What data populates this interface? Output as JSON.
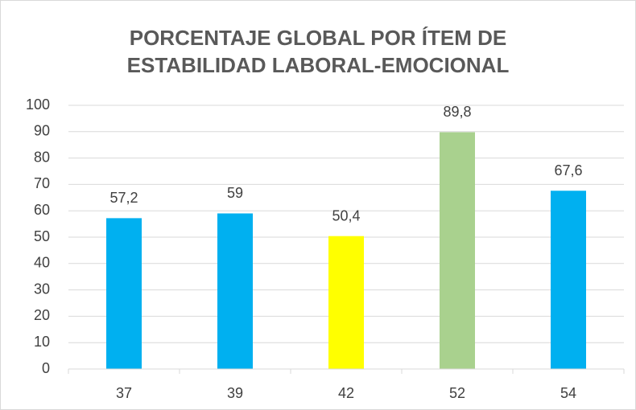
{
  "chart_data": {
    "type": "bar",
    "title": "PORCENTAJE GLOBAL POR ÍTEM DE ESTABILIDAD LABORAL-EMOCIONAL",
    "categories": [
      "37",
      "39",
      "42",
      "52",
      "54"
    ],
    "values": [
      57.2,
      59,
      50.4,
      89.8,
      67.6
    ],
    "value_labels": [
      "57,2",
      "59",
      "50,4",
      "89,8",
      "67,6"
    ],
    "colors": [
      "#00b0f0",
      "#00b0f0",
      "#ffff00",
      "#a9d18e",
      "#00b0f0"
    ],
    "ylim": [
      0,
      100
    ],
    "yticks": [
      0,
      10,
      20,
      30,
      40,
      50,
      60,
      70,
      80,
      90,
      100
    ],
    "grid": true
  }
}
